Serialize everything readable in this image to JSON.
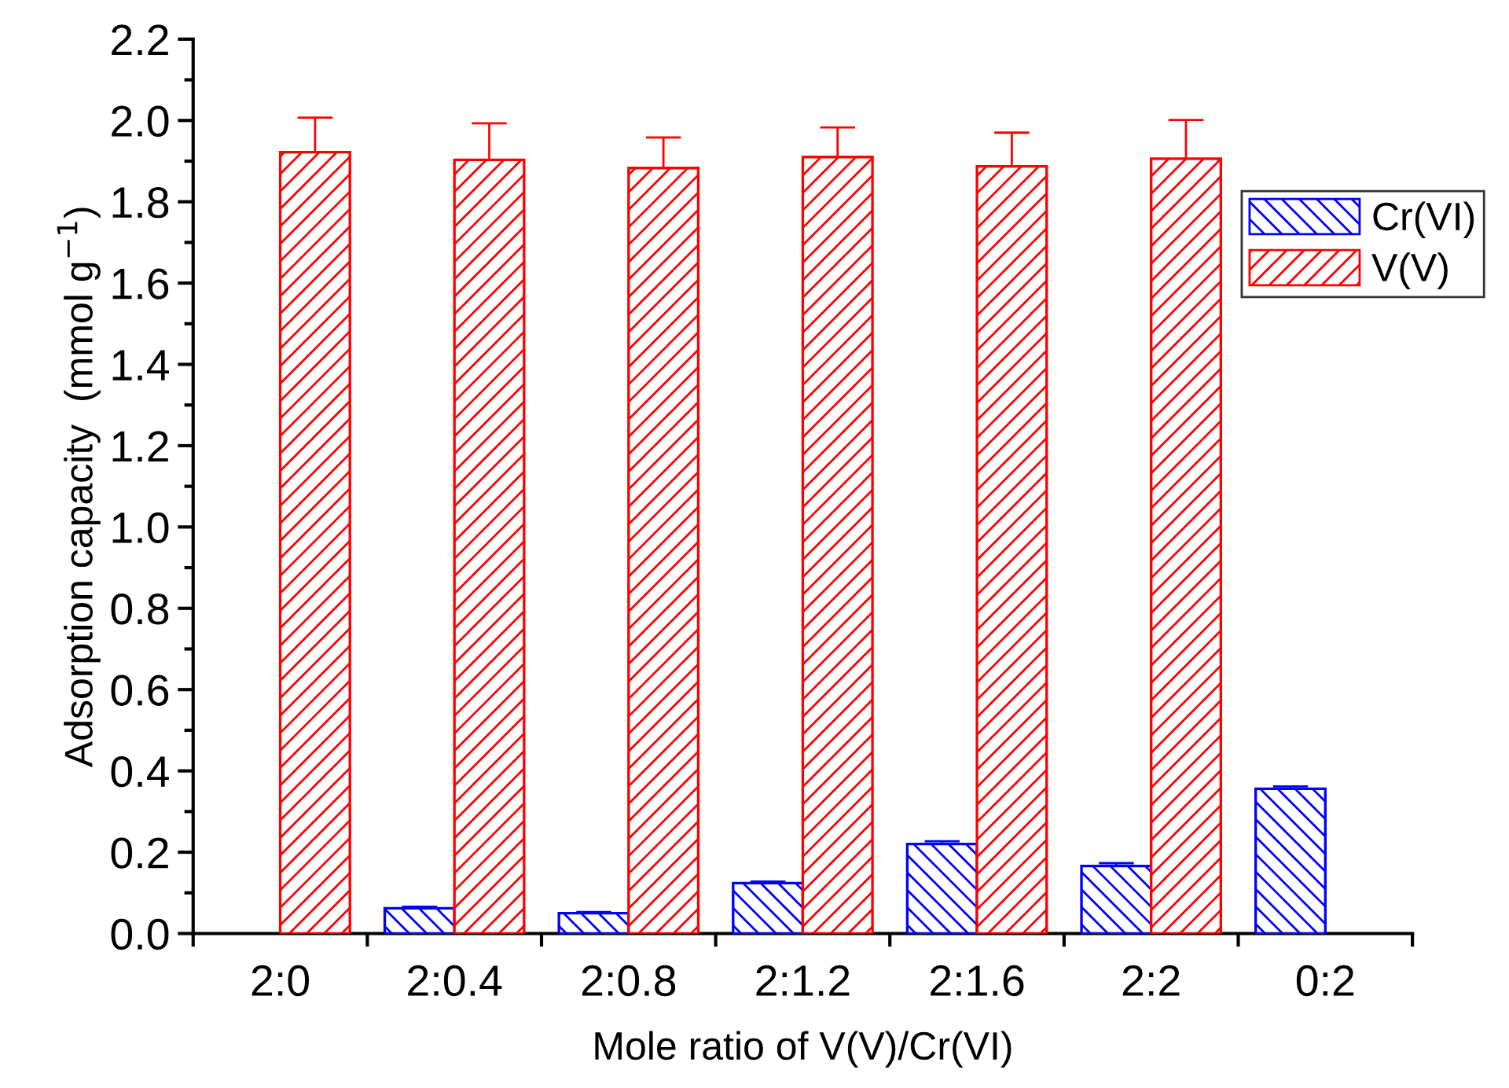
{
  "chart_data": {
    "type": "bar",
    "xlabel": "Mole ratio of V(V)/Cr(VI)",
    "ylabel": "Adsorption capacity  (mmol g$^{−1}$)",
    "categories": [
      "2:0",
      "2:0.4",
      "2:0.8",
      "2:1.2",
      "2:1.6",
      "2:2",
      "0:2"
    ],
    "series": [
      {
        "name": "Cr(VI)",
        "color": "#0000ff",
        "values": [
          null,
          0.062,
          0.05,
          0.124,
          0.22,
          0.166,
          0.356
        ],
        "errors": [
          null,
          0.004,
          0.003,
          0.004,
          0.007,
          0.007,
          0.006
        ]
      },
      {
        "name": "V(V)",
        "color": "#ff0000",
        "values": [
          1.922,
          1.903,
          1.883,
          1.91,
          1.887,
          1.906,
          null
        ],
        "errors": [
          0.085,
          0.09,
          0.075,
          0.073,
          0.083,
          0.095,
          null
        ]
      }
    ],
    "ylim": [
      0,
      2.2
    ],
    "yticks": [
      {
        "value": 0,
        "label": "0.0"
      },
      0.2,
      0.4,
      0.6,
      0.8,
      {
        "value": 1,
        "label": "1.0"
      },
      1.2,
      1.4,
      1.6,
      1.8,
      {
        "value": 2,
        "label": "2.0"
      },
      2.2
    ],
    "legend": "top right",
    "grid": false
  }
}
